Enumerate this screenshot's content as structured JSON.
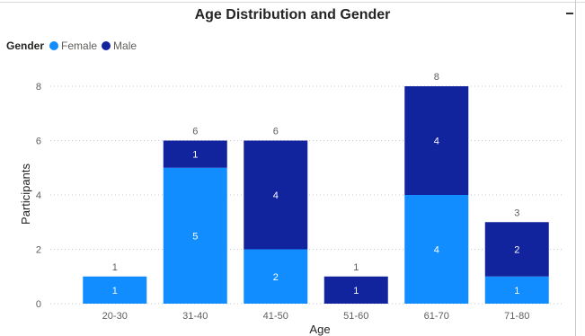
{
  "chart_data": {
    "type": "bar",
    "stacked": true,
    "title": "Age Distribution and Gender",
    "xlabel": "Age",
    "ylabel": "Participants",
    "categories": [
      "20-30",
      "31-40",
      "41-50",
      "51-60",
      "61-70",
      "71-80"
    ],
    "series": [
      {
        "name": "Female",
        "color": "#118dff",
        "values": [
          1,
          5,
          2,
          0,
          4,
          1
        ]
      },
      {
        "name": "Male",
        "color": "#12239e",
        "values": [
          0,
          1,
          4,
          1,
          4,
          2
        ]
      }
    ],
    "totals": [
      1,
      6,
      6,
      1,
      8,
      3
    ],
    "y_ticks": [
      0,
      2,
      4,
      6,
      8
    ],
    "ylim": [
      0,
      8
    ],
    "grid": true,
    "legend": {
      "title": "Gender",
      "position": "top-left"
    }
  }
}
